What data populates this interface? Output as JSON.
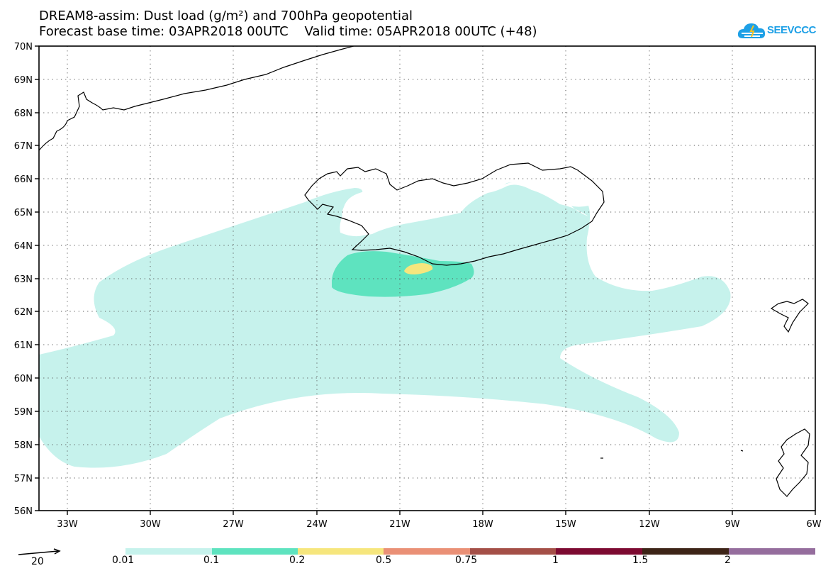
{
  "title": {
    "line1": "DREAM8-assim: Dust load (g/m²) and 700hPa geopotential",
    "line2": "Forecast base time: 03APR2018 00UTC    Valid time: 05APR2018 00UTC (+48)"
  },
  "logo": {
    "text": "SEEVCCC",
    "color": "#1ea0e6"
  },
  "map": {
    "lat_labels": [
      "70N",
      "69N",
      "68N",
      "67N",
      "66N",
      "65N",
      "64N",
      "63N",
      "62N",
      "61N",
      "60N",
      "59N",
      "58N",
      "57N",
      "56N"
    ],
    "lon_labels": [
      "33W",
      "30W",
      "27W",
      "24W",
      "21W",
      "18W",
      "15W",
      "12W",
      "9W",
      "6W"
    ],
    "grid": "dotted",
    "land_outline_color": "#000000"
  },
  "legend": {
    "vector_scale": "20",
    "bins": [
      {
        "color": "#c6f2ec"
      },
      {
        "color": "#5ee3bf"
      },
      {
        "color": "#f6e67d"
      },
      {
        "color": "#ea9076"
      },
      {
        "color": "#a44f47"
      },
      {
        "color": "#7d0a31"
      },
      {
        "color": "#3d2417"
      },
      {
        "color": "#956d9d"
      }
    ],
    "labels": [
      "0.01",
      "0.1",
      "0.2",
      "0.5",
      "0.75",
      "1",
      "1.5",
      "2"
    ]
  },
  "colors": {
    "dust_001": "#c6f2ec",
    "dust_01": "#5ee3bf",
    "dust_02": "#f6e67d"
  }
}
